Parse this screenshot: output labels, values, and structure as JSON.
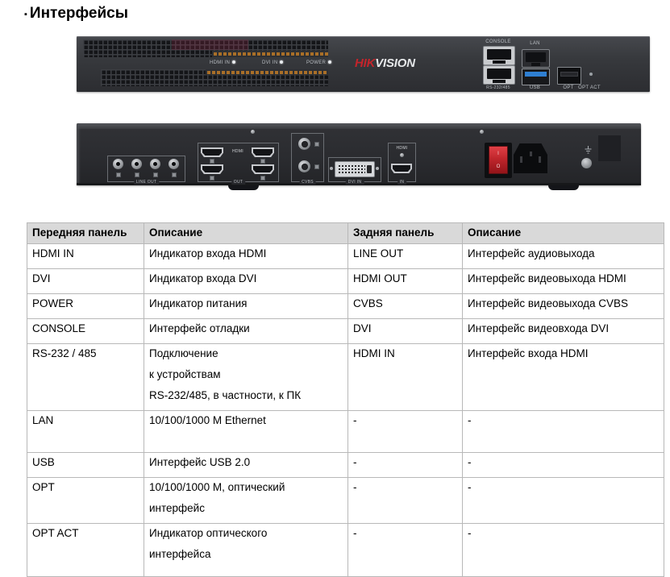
{
  "title": {
    "bullet": "▪",
    "text": "Интерфейсы"
  },
  "front_panel": {
    "indicators": [
      {
        "label": "HDMI IN"
      },
      {
        "label": "DVI IN"
      },
      {
        "label": "POWER"
      }
    ],
    "logo": {
      "hik": "HIK",
      "vision": "VISION"
    },
    "console_label": "CONSOLE",
    "rs232_label": "RS-232/485",
    "lan_label": "LAN",
    "usb_label": "USB",
    "opt_label": "OPT",
    "opt_act_label": "OPT ACT"
  },
  "rear_panel": {
    "line_out_label": "LINE OUT",
    "hdmi_group_label": "HDMI",
    "out_label": "OUT",
    "cvbs_label": "CVBS",
    "dvi_in_label": "DVI IN",
    "hdmi_in_label": "HDMI",
    "in_label": "IN",
    "power_on": "I",
    "power_off": "O"
  },
  "table": {
    "headers": [
      "Передняя панель",
      "Описание",
      "Задняя панель",
      "Описание"
    ],
    "rows": [
      {
        "front": "HDMI IN",
        "front_desc": [
          "Индикатор входа HDMI"
        ],
        "rear": "LINE OUT",
        "rear_desc": "Интерфейс аудиовыхода"
      },
      {
        "front": "DVI",
        "front_desc": [
          "Индикатор входа DVI"
        ],
        "rear": "HDMI OUT",
        "rear_desc": "Интерфейс видеовыхода HDMI"
      },
      {
        "front": "POWER",
        "front_desc": [
          "Индикатор питания"
        ],
        "rear": "CVBS",
        "rear_desc": "Интерфейс видеовыхода CVBS"
      },
      {
        "front": "CONSOLE",
        "front_desc": [
          "Интерфейс отладки"
        ],
        "rear": "DVI",
        "rear_desc": "Интерфейс видеовхода DVI"
      },
      {
        "front": "RS-232 / 485",
        "front_desc": [
          "Подключение",
          "к устройствам",
          "RS-232/485, в частности, к ПК"
        ],
        "rear": "HDMI IN",
        "rear_desc": "Интерфейс входа HDMI"
      },
      {
        "front": "LAN",
        "front_desc": [
          "10/100/1000 M Ethernet"
        ],
        "rear": "-",
        "rear_desc": "-"
      },
      {
        "front": "USB",
        "front_desc": [
          "Интерфейс USB 2.0"
        ],
        "rear": "-",
        "rear_desc": "-"
      },
      {
        "front": "OPT",
        "front_desc": [
          "10/100/1000 М, оптический",
          "интерфейс"
        ],
        "rear": "-",
        "rear_desc": "-"
      },
      {
        "front": "OPT ACT",
        "front_desc": [
          "Индикатор оптического",
          "интерфейса"
        ],
        "rear": "-",
        "rear_desc": "-"
      }
    ]
  }
}
